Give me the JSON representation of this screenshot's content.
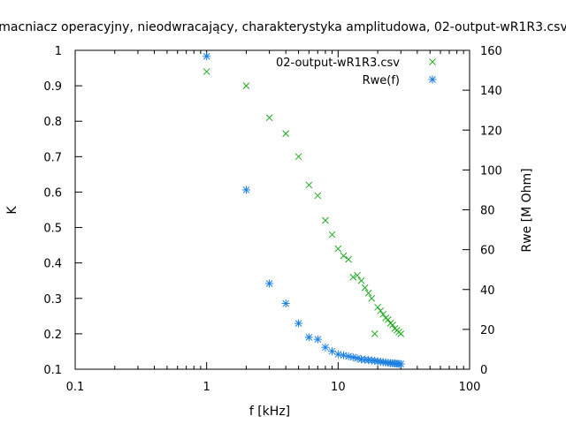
{
  "chart_data": {
    "type": "scatter",
    "title": "macniacz operacyjny, nieodwracający, charakterystyka amplitudowa, 02-output-wR1R3.csv",
    "xlabel": "f [kHz]",
    "ylabel": "K",
    "y2label": "Rwe [M Ohm]",
    "xscale": "log",
    "xlim": [
      0.1,
      100
    ],
    "ylim": [
      0.1,
      1
    ],
    "y2lim": [
      0,
      160
    ],
    "grid": false,
    "legend_position": "top-right",
    "x_ticks": [
      "0.1",
      "1",
      "10",
      "100"
    ],
    "y_ticks": [
      "0.1",
      "0.2",
      "0.3",
      "0.4",
      "0.5",
      "0.6",
      "0.7",
      "0.8",
      "0.9",
      "1"
    ],
    "y2_ticks": [
      "0",
      "20",
      "40",
      "60",
      "80",
      "100",
      "120",
      "140",
      "160"
    ],
    "series": [
      {
        "name": "02-output-wR1R3.csv",
        "marker": "x",
        "color": "#22aa22",
        "axis": "left",
        "points": [
          [
            1,
            0.94
          ],
          [
            2,
            0.9
          ],
          [
            3,
            0.81
          ],
          [
            4,
            0.765
          ],
          [
            5,
            0.7
          ],
          [
            6,
            0.62
          ],
          [
            7,
            0.59
          ],
          [
            8,
            0.52
          ],
          [
            9,
            0.48
          ],
          [
            10,
            0.44
          ],
          [
            11,
            0.42
          ],
          [
            12,
            0.41
          ],
          [
            13,
            0.36
          ],
          [
            14,
            0.365
          ],
          [
            15,
            0.35
          ],
          [
            16,
            0.33
          ],
          [
            17,
            0.315
          ],
          [
            18,
            0.3
          ],
          [
            19,
            0.2
          ],
          [
            20,
            0.275
          ],
          [
            21,
            0.265
          ],
          [
            22,
            0.255
          ],
          [
            23,
            0.245
          ],
          [
            24,
            0.24
          ],
          [
            25,
            0.23
          ],
          [
            26,
            0.225
          ],
          [
            27,
            0.215
          ],
          [
            28,
            0.21
          ],
          [
            29,
            0.205
          ],
          [
            30,
            0.2
          ]
        ]
      },
      {
        "name": "Rwe(f)",
        "marker": "star",
        "color": "#1a7fe0",
        "axis": "right",
        "points": [
          [
            1,
            157
          ],
          [
            2,
            90
          ],
          [
            3,
            43
          ],
          [
            4,
            33
          ],
          [
            5,
            23
          ],
          [
            6,
            16
          ],
          [
            7,
            15
          ],
          [
            8,
            11
          ],
          [
            9,
            9
          ],
          [
            10,
            7.5
          ],
          [
            11,
            7
          ],
          [
            12,
            6.5
          ],
          [
            13,
            6
          ],
          [
            14,
            5.5
          ],
          [
            15,
            5
          ],
          [
            16,
            4.8
          ],
          [
            17,
            4.6
          ],
          [
            18,
            4.4
          ],
          [
            19,
            4.2
          ],
          [
            20,
            4
          ],
          [
            21,
            3.8
          ],
          [
            22,
            3.6
          ],
          [
            23,
            3.4
          ],
          [
            24,
            3.2
          ],
          [
            25,
            3.1
          ],
          [
            26,
            3
          ],
          [
            27,
            2.9
          ],
          [
            28,
            2.8
          ],
          [
            29,
            2.7
          ],
          [
            30,
            2.6
          ]
        ]
      }
    ]
  }
}
